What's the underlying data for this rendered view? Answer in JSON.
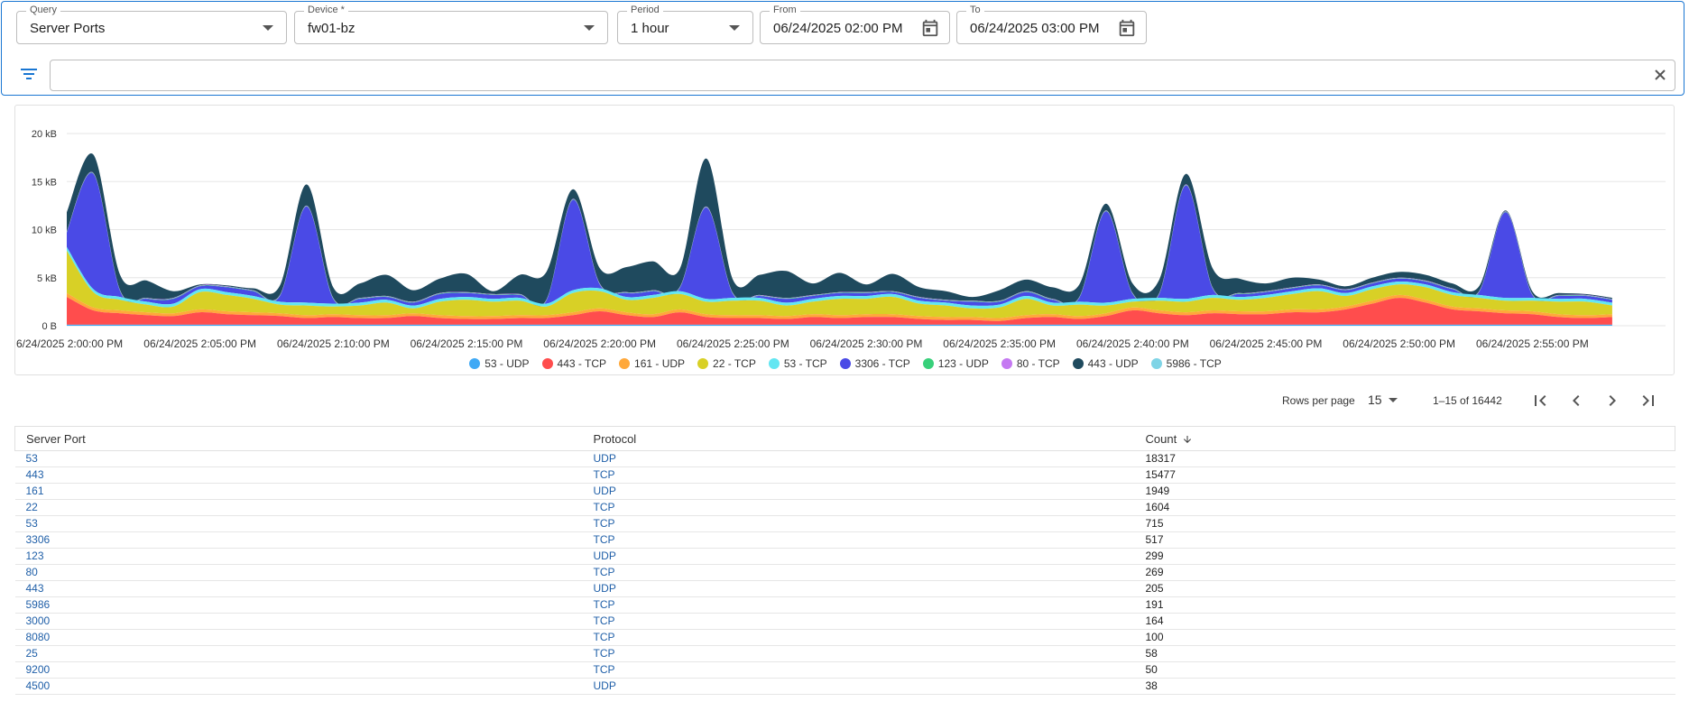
{
  "query": {
    "label": "Query",
    "value": "Server Ports"
  },
  "device": {
    "label": "Device *",
    "value": "fw01-bz"
  },
  "period": {
    "label": "Period",
    "value": "1 hour"
  },
  "from": {
    "label": "From",
    "value": "06/24/2025 02:00 PM"
  },
  "to": {
    "label": "To",
    "value": "06/24/2025 03:00 PM"
  },
  "filter": {
    "value": "",
    "placeholder": ""
  },
  "icons": {
    "filter": "filter-icon",
    "clear": "close-icon",
    "calendar": "calendar-icon",
    "dropdown": "chevron-down-icon"
  },
  "chart_data": {
    "type": "area",
    "stacked": true,
    "ylabel": "",
    "ylim": [
      0,
      20
    ],
    "y_unit": "kB",
    "y_ticks": [
      {
        "v": 0,
        "label": "0 B"
      },
      {
        "v": 5,
        "label": "5 kB"
      },
      {
        "v": 10,
        "label": "10 kB"
      },
      {
        "v": 15,
        "label": "15 kB"
      },
      {
        "v": 20,
        "label": "20 kB"
      }
    ],
    "x_unit": "minutes after 2:00 PM",
    "xlim": [
      0,
      60
    ],
    "x_ticks": [
      {
        "v": 0,
        "label": "6/24/2025 2:00:00 PM"
      },
      {
        "v": 5,
        "label": "06/24/2025 2:05:00 PM"
      },
      {
        "v": 10,
        "label": "06/24/2025 2:10:00 PM"
      },
      {
        "v": 15,
        "label": "06/24/2025 2:15:00 PM"
      },
      {
        "v": 20,
        "label": "06/24/2025 2:20:00 PM"
      },
      {
        "v": 25,
        "label": "06/24/2025 2:25:00 PM"
      },
      {
        "v": 30,
        "label": "06/24/2025 2:30:00 PM"
      },
      {
        "v": 35,
        "label": "06/24/2025 2:35:00 PM"
      },
      {
        "v": 40,
        "label": "06/24/2025 2:40:00 PM"
      },
      {
        "v": 45,
        "label": "06/24/2025 2:45:00 PM"
      },
      {
        "v": 50,
        "label": "06/24/2025 2:50:00 PM"
      },
      {
        "v": 55,
        "label": "06/24/2025 2:55:00 PM"
      }
    ],
    "x": [
      0,
      1,
      2,
      3,
      4,
      5,
      6,
      7,
      8,
      9,
      10,
      11,
      12,
      13,
      14,
      15,
      16,
      17,
      18,
      19,
      20,
      21,
      22,
      23,
      24,
      25,
      26,
      27,
      28,
      29,
      30,
      31,
      32,
      33,
      34,
      35,
      36,
      37,
      38,
      39,
      40,
      41,
      42,
      43,
      44,
      45,
      46,
      47,
      48,
      49,
      50,
      51,
      52,
      53,
      54,
      55,
      56,
      57,
      58
    ],
    "series": [
      {
        "name": "53 - UDP",
        "color": "#3fa9f5",
        "values": [
          0.1,
          0.1,
          0.1,
          0.1,
          0.1,
          0.1,
          0.1,
          0.1,
          0.1,
          0.1,
          0.1,
          0.1,
          0.1,
          0.1,
          0.1,
          0.1,
          0.1,
          0.1,
          0.1,
          0.1,
          0.1,
          0.1,
          0.1,
          0.1,
          0.1,
          0.1,
          0.1,
          0.1,
          0.1,
          0.1,
          0.1,
          0.1,
          0.1,
          0.1,
          0.1,
          0.1,
          0.1,
          0.1,
          0.1,
          0.1,
          0.1,
          0.1,
          0.1,
          0.1,
          0.1,
          0.1,
          0.1,
          0.1,
          0.1,
          0.1,
          0.1,
          0.1,
          0.1,
          0.1,
          0.1,
          0.1,
          0.1,
          0.1,
          0.1
        ]
      },
      {
        "name": "443 - TCP",
        "color": "#ff4d4d",
        "values": [
          2.9,
          1.5,
          1.2,
          1.0,
          0.9,
          1.3,
          1.1,
          1.0,
          0.9,
          0.7,
          0.8,
          0.7,
          0.7,
          0.9,
          0.7,
          0.6,
          0.6,
          0.7,
          0.7,
          1.0,
          1.4,
          1.0,
          0.8,
          1.3,
          0.8,
          0.7,
          0.7,
          0.6,
          0.8,
          0.7,
          0.8,
          0.8,
          0.6,
          0.5,
          0.5,
          0.4,
          0.7,
          0.8,
          0.6,
          0.9,
          1.5,
          1.2,
          1.0,
          1.2,
          1.1,
          1.1,
          1.3,
          1.3,
          1.6,
          2.2,
          2.8,
          2.3,
          1.6,
          1.4,
          1.2,
          1.1,
          0.8,
          0.7,
          0.8
        ]
      },
      {
        "name": "161 - UDP",
        "color": "#ffa83a",
        "values": [
          0.4,
          0.3,
          0.3,
          0.3,
          0.3,
          0.3,
          0.3,
          0.3,
          0.3,
          0.3,
          0.3,
          0.3,
          0.3,
          0.3,
          0.3,
          0.3,
          0.3,
          0.3,
          0.3,
          0.3,
          0.3,
          0.3,
          0.3,
          0.3,
          0.3,
          0.3,
          0.3,
          0.3,
          0.3,
          0.3,
          0.3,
          0.3,
          0.3,
          0.3,
          0.3,
          0.3,
          0.3,
          0.3,
          0.3,
          0.3,
          0.3,
          0.3,
          0.3,
          0.3,
          0.3,
          0.3,
          0.3,
          0.3,
          0.3,
          0.3,
          0.3,
          0.3,
          0.3,
          0.3,
          0.3,
          0.3,
          0.3,
          0.3,
          0.3
        ]
      },
      {
        "name": "22 - TCP",
        "color": "#d8d026",
        "values": [
          4.4,
          1.6,
          1.1,
          0.8,
          0.7,
          1.8,
          1.7,
          1.4,
          0.9,
          1.0,
          0.8,
          1.0,
          1.3,
          0.5,
          1.4,
          1.7,
          1.5,
          1.5,
          0.9,
          2.0,
          1.8,
          1.3,
          1.7,
          1.6,
          1.3,
          1.5,
          1.5,
          1.1,
          1.3,
          1.7,
          1.6,
          1.8,
          1.3,
          1.2,
          0.9,
          1.1,
          1.7,
          0.9,
          1.2,
          0.8,
          0.6,
          1.0,
          1.1,
          1.3,
          1.2,
          1.4,
          1.6,
          1.9,
          1.1,
          1.2,
          1.1,
          1.3,
          1.2,
          1.1,
          1.0,
          1.1,
          1.3,
          1.4,
          0.9
        ]
      },
      {
        "name": "53 - TCP",
        "color": "#62e6f2",
        "values": [
          0.4,
          0.3,
          0.3,
          0.3,
          0.3,
          0.3,
          0.3,
          0.3,
          0.3,
          0.3,
          0.3,
          0.3,
          0.3,
          0.3,
          0.3,
          0.3,
          0.3,
          0.3,
          0.3,
          0.3,
          0.3,
          0.3,
          0.3,
          0.3,
          0.3,
          0.3,
          0.3,
          0.3,
          0.3,
          0.3,
          0.3,
          0.3,
          0.3,
          0.3,
          0.3,
          0.3,
          0.3,
          0.3,
          0.3,
          0.3,
          0.3,
          0.3,
          0.3,
          0.3,
          0.3,
          0.3,
          0.3,
          0.3,
          0.3,
          0.3,
          0.3,
          0.3,
          0.3,
          0.3,
          0.3,
          0.3,
          0.3,
          0.3,
          0.3
        ]
      },
      {
        "name": "3306 - TCP",
        "color": "#4a4ae6",
        "values": [
          1.5,
          12.0,
          0.6,
          0.3,
          0.5,
          0.3,
          0.5,
          0.5,
          0.6,
          10.0,
          0.5,
          0.4,
          0.3,
          0.3,
          0.5,
          0.4,
          0.4,
          0.3,
          0.3,
          9.4,
          0.4,
          0.4,
          0.4,
          0.3,
          9.5,
          0.4,
          0.2,
          0.4,
          0.3,
          0.3,
          0.3,
          0.2,
          0.3,
          0.2,
          0.4,
          0.3,
          0.4,
          0.3,
          0.4,
          9.5,
          0.5,
          0.4,
          11.8,
          0.7,
          0.3,
          0.3,
          0.3,
          0.3,
          0.3,
          0.3,
          0.3,
          0.3,
          0.3,
          0.3,
          8.9,
          0.3,
          0.3,
          0.3,
          0.3
        ]
      },
      {
        "name": "123 - UDP",
        "color": "#38d07a",
        "values": [
          0.05,
          0.05,
          0.05,
          0.05,
          0.05,
          0.05,
          0.05,
          0.05,
          0.05,
          0.05,
          0.05,
          0.05,
          0.05,
          0.05,
          0.05,
          0.05,
          0.05,
          0.05,
          0.05,
          0.05,
          0.05,
          0.05,
          0.05,
          0.05,
          0.05,
          0.05,
          0.05,
          0.05,
          0.05,
          0.05,
          0.05,
          0.05,
          0.05,
          0.05,
          0.05,
          0.05,
          0.05,
          0.05,
          0.05,
          0.05,
          0.05,
          0.05,
          0.05,
          0.05,
          0.05,
          0.05,
          0.05,
          0.05,
          0.05,
          0.05,
          0.05,
          0.05,
          0.05,
          0.05,
          0.05,
          0.05,
          0.05,
          0.05,
          0.05
        ]
      },
      {
        "name": "80 - TCP",
        "color": "#c579f2",
        "values": [
          0.05,
          0.05,
          0.05,
          0.05,
          0.05,
          0.05,
          0.05,
          0.05,
          0.05,
          0.05,
          0.05,
          0.05,
          0.05,
          0.05,
          0.05,
          0.05,
          0.05,
          0.05,
          0.05,
          0.05,
          0.05,
          0.05,
          0.05,
          0.05,
          0.05,
          0.05,
          0.05,
          0.05,
          0.05,
          0.05,
          0.05,
          0.05,
          0.05,
          0.05,
          0.05,
          0.05,
          0.05,
          0.05,
          0.05,
          0.05,
          0.05,
          0.05,
          0.05,
          0.05,
          0.05,
          0.05,
          0.05,
          0.05,
          0.05,
          0.05,
          0.05,
          0.05,
          0.05,
          0.05,
          0.05,
          0.05,
          0.05,
          0.05,
          0.05
        ]
      },
      {
        "name": "443 - UDP",
        "color": "#1f4a5e",
        "values": [
          2.0,
          1.9,
          1.6,
          1.8,
          0.7,
          0.1,
          0.1,
          0.2,
          1.0,
          2.2,
          1.1,
          1.5,
          2.2,
          1.2,
          1.5,
          1.9,
          0.3,
          2.0,
          2.9,
          1.0,
          1.6,
          2.6,
          3.0,
          1.9,
          5.0,
          1.4,
          2.1,
          2.8,
          1.2,
          2.0,
          0.8,
          1.8,
          1.0,
          0.9,
          0.4,
          1.1,
          1.2,
          1.2,
          1.3,
          0.7,
          1.0,
          1.4,
          1.1,
          2.0,
          1.5,
          0.8,
          1.0,
          0.5,
          0.3,
          0.5,
          0.6,
          0.6,
          0.5,
          0.5,
          0.1,
          0.3,
          0.2,
          0.1,
          0.1
        ]
      },
      {
        "name": "5986 - TCP",
        "color": "#7fd4e6",
        "values": [
          0,
          0,
          0,
          0,
          0,
          0,
          0,
          0,
          0,
          0,
          0,
          0,
          0,
          0,
          0,
          0,
          0,
          0,
          0,
          0,
          0,
          0,
          0,
          0,
          0,
          0,
          0,
          0,
          0,
          0,
          0,
          0,
          0,
          0,
          0,
          0,
          0,
          0,
          0,
          0,
          0,
          0,
          0,
          0,
          0,
          0,
          0,
          0,
          0,
          0,
          0,
          0,
          0,
          0,
          0,
          0,
          0,
          0,
          0
        ]
      }
    ]
  },
  "pagination": {
    "rows_per_page_label": "Rows per page",
    "rows_per_page_value": "15",
    "range_text": "1–15 of 16442"
  },
  "table": {
    "columns": [
      "Server Port",
      "Protocol",
      "Count"
    ],
    "sorted_column": "Count",
    "rows": [
      {
        "port": "53",
        "protocol": "UDP",
        "count": "18317"
      },
      {
        "port": "443",
        "protocol": "TCP",
        "count": "15477"
      },
      {
        "port": "161",
        "protocol": "UDP",
        "count": "1949"
      },
      {
        "port": "22",
        "protocol": "TCP",
        "count": "1604"
      },
      {
        "port": "53",
        "protocol": "TCP",
        "count": "715"
      },
      {
        "port": "3306",
        "protocol": "TCP",
        "count": "517"
      },
      {
        "port": "123",
        "protocol": "UDP",
        "count": "299"
      },
      {
        "port": "80",
        "protocol": "TCP",
        "count": "269"
      },
      {
        "port": "443",
        "protocol": "UDP",
        "count": "205"
      },
      {
        "port": "5986",
        "protocol": "TCP",
        "count": "191"
      },
      {
        "port": "3000",
        "protocol": "TCP",
        "count": "164"
      },
      {
        "port": "8080",
        "protocol": "TCP",
        "count": "100"
      },
      {
        "port": "25",
        "protocol": "TCP",
        "count": "58"
      },
      {
        "port": "9200",
        "protocol": "TCP",
        "count": "50"
      },
      {
        "port": "4500",
        "protocol": "UDP",
        "count": "38"
      }
    ]
  }
}
